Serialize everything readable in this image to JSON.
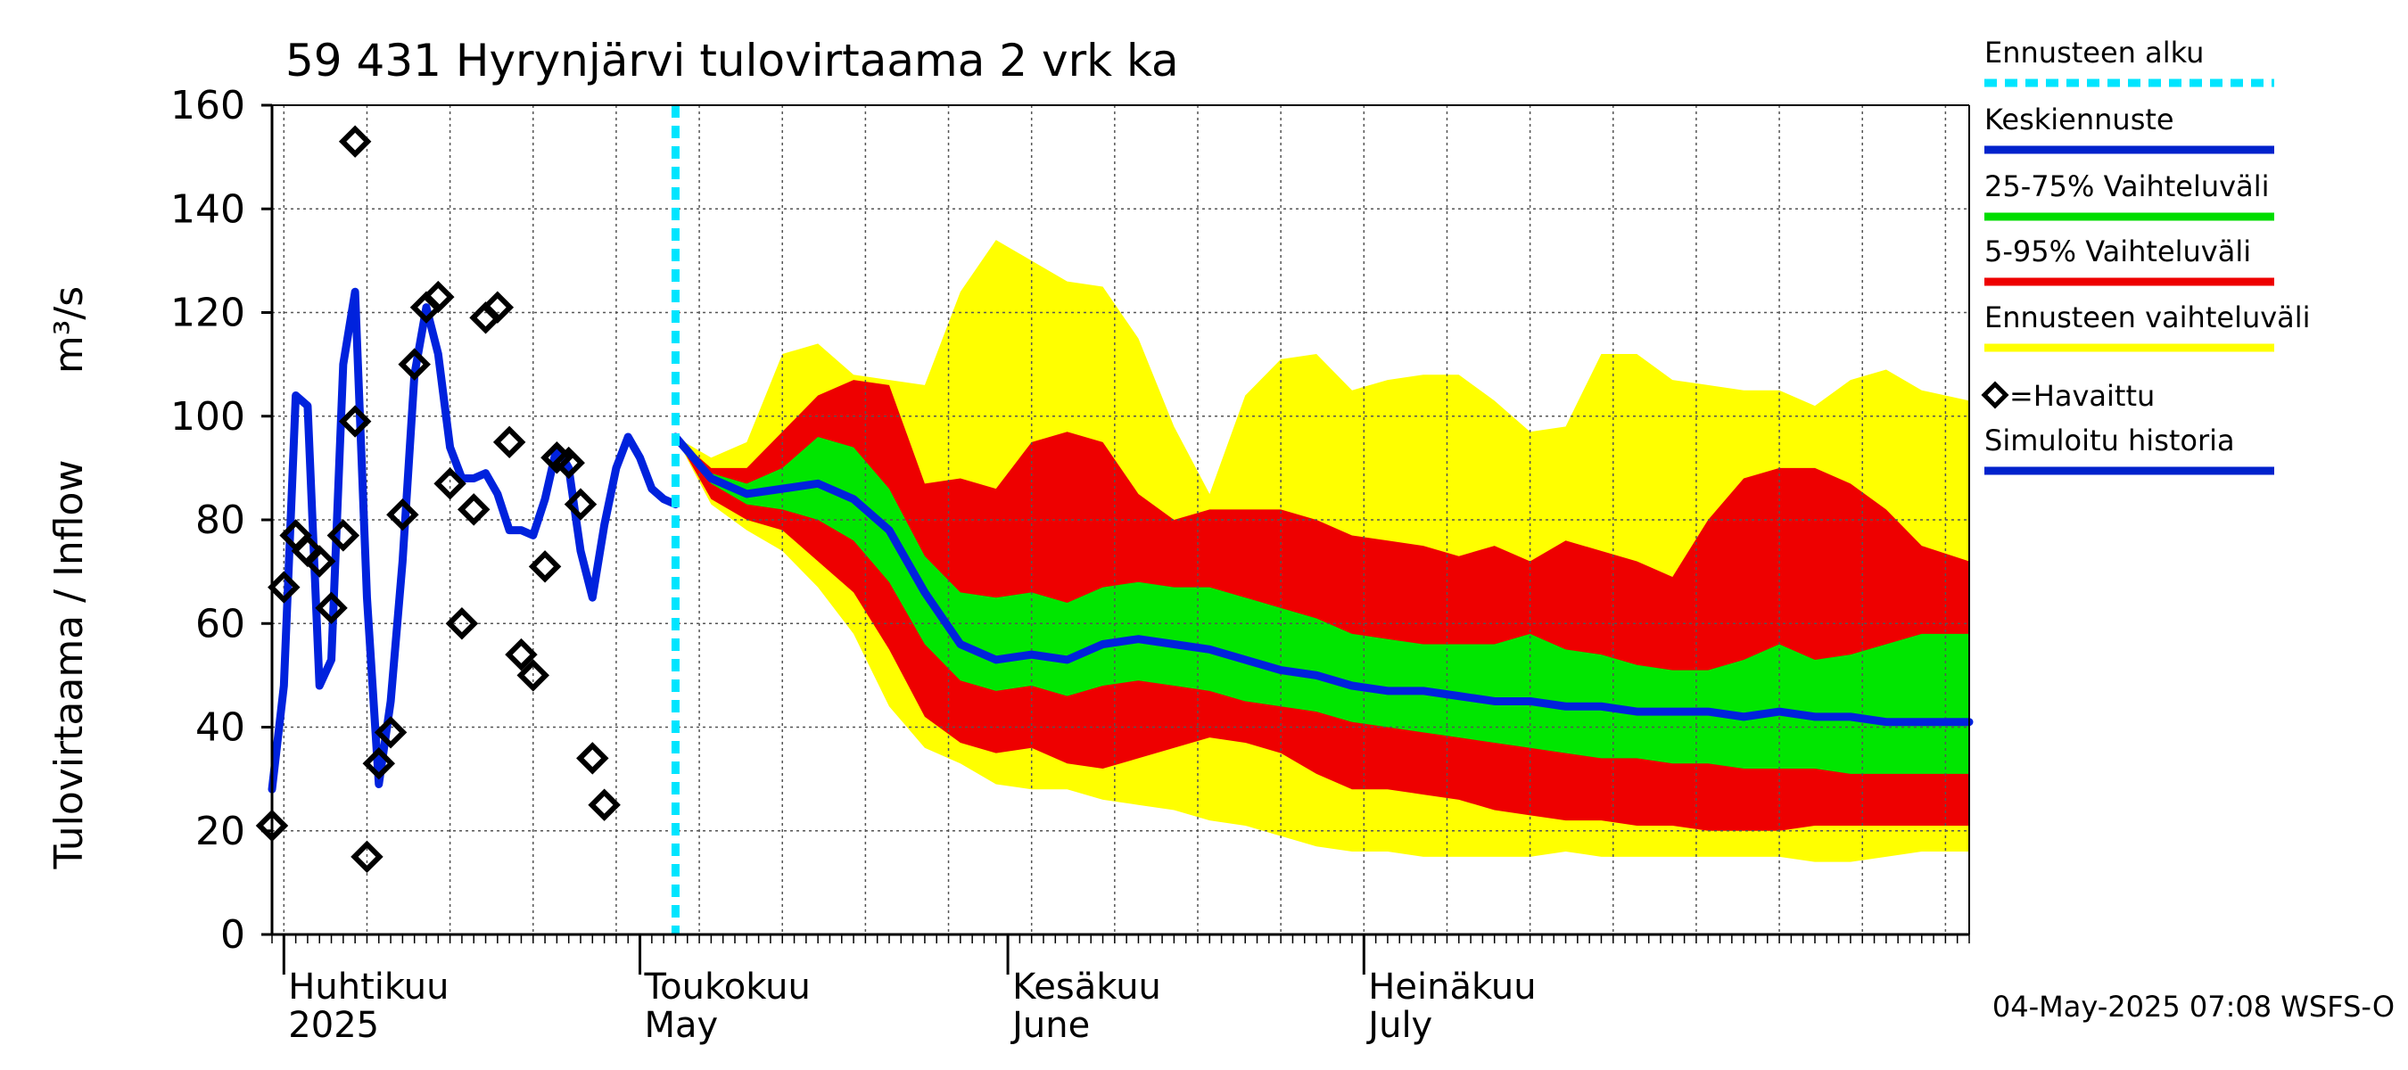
{
  "chart_data": {
    "type": "line",
    "title": "59 431 Hyrynjärvi tulovirtaama 2 vrk ka",
    "ylabel_left": "Tulovirtaama / Inflow",
    "ylabel_unit": "m³/s",
    "ylim": [
      0,
      160
    ],
    "xlim": [
      "2025-03-31",
      "2025-08-21"
    ],
    "y_ticks": [
      0,
      20,
      40,
      60,
      80,
      100,
      120,
      140,
      160
    ],
    "grid": true,
    "legend_position": "right",
    "x_tick_labels": [
      {
        "line1": "Huhtikuu",
        "line2": "2025",
        "date": "2025-04-01"
      },
      {
        "line1": "Toukokuu",
        "line2": "May",
        "date": "2025-05-01"
      },
      {
        "line1": "Kesäkuu",
        "line2": "June",
        "date": "2025-06-01"
      },
      {
        "line1": "Heinäkuu",
        "line2": "July",
        "date": "2025-07-01"
      }
    ],
    "forecast_start": "2025-05-04",
    "footer": "04-May-2025 07:08 WSFS-O",
    "legend": [
      {
        "label": "Ennusteen alku",
        "color": "#00e5ff",
        "style": "dotted"
      },
      {
        "label": "Keskiennuste",
        "color": "#0022cc",
        "style": "solid"
      },
      {
        "label": "25-75% Vaihteluväli",
        "color": "#00dd00",
        "style": "solid"
      },
      {
        "label": "5-95% Vaihteluväli",
        "color": "#ee0000",
        "style": "solid"
      },
      {
        "label": "Ennusteen vaihteluväli",
        "color": "#ffff00",
        "style": "solid"
      },
      {
        "label": "=Havaittu",
        "color": "#000000",
        "style": "marker"
      },
      {
        "label": "Simuloitu historia",
        "color": "#0022cc",
        "style": "solid"
      }
    ],
    "colors": {
      "yellow": "#ffff00",
      "red": "#ee0000",
      "green": "#00e600",
      "blue": "#0022dd",
      "forecast_start": "#00e5ff",
      "observed": "#000000"
    },
    "simulated_history": {
      "x": [
        "2025-03-31",
        "2025-04-01",
        "2025-04-02",
        "2025-04-03",
        "2025-04-04",
        "2025-04-05",
        "2025-04-06",
        "2025-04-07",
        "2025-04-08",
        "2025-04-09",
        "2025-04-10",
        "2025-04-11",
        "2025-04-12",
        "2025-04-13",
        "2025-04-14",
        "2025-04-15",
        "2025-04-16",
        "2025-04-17",
        "2025-04-18",
        "2025-04-19",
        "2025-04-20",
        "2025-04-21",
        "2025-04-22",
        "2025-04-23",
        "2025-04-24",
        "2025-04-25",
        "2025-04-26",
        "2025-04-27",
        "2025-04-28",
        "2025-04-29",
        "2025-04-30",
        "2025-05-01",
        "2025-05-02",
        "2025-05-03",
        "2025-05-04"
      ],
      "values": [
        28,
        48,
        104,
        102,
        48,
        53,
        110,
        124,
        65,
        29,
        45,
        72,
        108,
        121,
        112,
        94,
        88,
        88,
        89,
        85,
        78,
        78,
        77,
        84,
        94,
        90,
        74,
        65,
        79,
        90,
        96,
        92,
        86,
        84,
        83
      ]
    },
    "forecast_median": {
      "x": [
        "2025-05-04",
        "2025-05-07",
        "2025-05-10",
        "2025-05-13",
        "2025-05-16",
        "2025-05-19",
        "2025-05-22",
        "2025-05-25",
        "2025-05-28",
        "2025-05-31",
        "2025-06-03",
        "2025-06-06",
        "2025-06-09",
        "2025-06-12",
        "2025-06-15",
        "2025-06-18",
        "2025-06-21",
        "2025-06-24",
        "2025-06-27",
        "2025-06-30",
        "2025-07-03",
        "2025-07-06",
        "2025-07-09",
        "2025-07-12",
        "2025-07-15",
        "2025-07-18",
        "2025-07-21",
        "2025-07-24",
        "2025-07-27",
        "2025-07-30",
        "2025-08-02",
        "2025-08-05",
        "2025-08-08",
        "2025-08-11",
        "2025-08-14",
        "2025-08-17",
        "2025-08-21"
      ],
      "values": [
        96,
        88,
        85,
        86,
        87,
        84,
        78,
        66,
        56,
        53,
        54,
        53,
        56,
        57,
        56,
        55,
        53,
        51,
        50,
        48,
        47,
        47,
        46,
        45,
        45,
        44,
        44,
        43,
        43,
        43,
        42,
        43,
        42,
        42,
        41,
        41,
        41
      ]
    },
    "band_25_75": {
      "x": [
        "2025-05-04",
        "2025-05-07",
        "2025-05-10",
        "2025-05-13",
        "2025-05-16",
        "2025-05-19",
        "2025-05-22",
        "2025-05-25",
        "2025-05-28",
        "2025-05-31",
        "2025-06-03",
        "2025-06-06",
        "2025-06-09",
        "2025-06-12",
        "2025-06-15",
        "2025-06-18",
        "2025-06-21",
        "2025-06-24",
        "2025-06-27",
        "2025-06-30",
        "2025-07-03",
        "2025-07-06",
        "2025-07-09",
        "2025-07-12",
        "2025-07-15",
        "2025-07-18",
        "2025-07-21",
        "2025-07-24",
        "2025-07-27",
        "2025-07-30",
        "2025-08-02",
        "2025-08-05",
        "2025-08-08",
        "2025-08-11",
        "2025-08-14",
        "2025-08-17",
        "2025-08-21"
      ],
      "lower": [
        96,
        87,
        83,
        82,
        80,
        76,
        68,
        56,
        49,
        47,
        48,
        46,
        48,
        49,
        48,
        47,
        45,
        44,
        43,
        41,
        40,
        39,
        38,
        37,
        36,
        35,
        34,
        34,
        33,
        33,
        32,
        32,
        32,
        31,
        31,
        31,
        31
      ],
      "upper": [
        96,
        89,
        87,
        90,
        96,
        94,
        86,
        73,
        66,
        65,
        66,
        64,
        67,
        68,
        67,
        67,
        65,
        63,
        61,
        58,
        57,
        56,
        56,
        56,
        58,
        55,
        54,
        52,
        51,
        51,
        53,
        56,
        53,
        54,
        56,
        58,
        58
      ]
    },
    "band_5_95": {
      "x": [
        "2025-05-04",
        "2025-05-07",
        "2025-05-10",
        "2025-05-13",
        "2025-05-16",
        "2025-05-19",
        "2025-05-22",
        "2025-05-25",
        "2025-05-28",
        "2025-05-31",
        "2025-06-03",
        "2025-06-06",
        "2025-06-09",
        "2025-06-12",
        "2025-06-15",
        "2025-06-18",
        "2025-06-21",
        "2025-06-24",
        "2025-06-27",
        "2025-06-30",
        "2025-07-03",
        "2025-07-06",
        "2025-07-09",
        "2025-07-12",
        "2025-07-15",
        "2025-07-18",
        "2025-07-21",
        "2025-07-24",
        "2025-07-27",
        "2025-07-30",
        "2025-08-02",
        "2025-08-05",
        "2025-08-08",
        "2025-08-11",
        "2025-08-14",
        "2025-08-17",
        "2025-08-21"
      ],
      "lower": [
        96,
        84,
        80,
        78,
        72,
        66,
        55,
        42,
        37,
        35,
        36,
        33,
        32,
        34,
        36,
        38,
        37,
        35,
        31,
        28,
        28,
        27,
        26,
        24,
        23,
        22,
        22,
        21,
        21,
        20,
        20,
        20,
        21,
        21,
        21,
        21,
        21
      ],
      "upper": [
        96,
        90,
        90,
        97,
        104,
        107,
        106,
        87,
        88,
        86,
        95,
        97,
        95,
        85,
        80,
        82,
        82,
        82,
        80,
        77,
        76,
        75,
        73,
        75,
        72,
        76,
        74,
        72,
        69,
        80,
        88,
        90,
        90,
        87,
        82,
        75,
        72
      ]
    },
    "band_full": {
      "x": [
        "2025-05-04",
        "2025-05-07",
        "2025-05-10",
        "2025-05-13",
        "2025-05-16",
        "2025-05-19",
        "2025-05-22",
        "2025-05-25",
        "2025-05-28",
        "2025-05-31",
        "2025-06-03",
        "2025-06-06",
        "2025-06-09",
        "2025-06-12",
        "2025-06-15",
        "2025-06-18",
        "2025-06-21",
        "2025-06-24",
        "2025-06-27",
        "2025-06-30",
        "2025-07-03",
        "2025-07-06",
        "2025-07-09",
        "2025-07-12",
        "2025-07-15",
        "2025-07-18",
        "2025-07-21",
        "2025-07-24",
        "2025-07-27",
        "2025-07-30",
        "2025-08-02",
        "2025-08-05",
        "2025-08-08",
        "2025-08-11",
        "2025-08-14",
        "2025-08-17",
        "2025-08-21"
      ],
      "lower": [
        96,
        83,
        78,
        74,
        67,
        58,
        44,
        36,
        33,
        29,
        28,
        28,
        26,
        25,
        24,
        22,
        21,
        19,
        17,
        16,
        16,
        15,
        15,
        15,
        15,
        16,
        15,
        15,
        15,
        15,
        15,
        15,
        14,
        14,
        15,
        16,
        16
      ],
      "upper": [
        96,
        92,
        95,
        112,
        114,
        108,
        107,
        106,
        124,
        134,
        130,
        126,
        125,
        115,
        98,
        85,
        104,
        111,
        112,
        105,
        107,
        108,
        108,
        103,
        97,
        98,
        112,
        112,
        107,
        106,
        105,
        105,
        102,
        107,
        109,
        105,
        103
      ]
    },
    "observed": {
      "x": [
        "2025-03-31",
        "2025-04-01",
        "2025-04-02",
        "2025-04-03",
        "2025-04-04",
        "2025-04-05",
        "2025-04-06",
        "2025-04-07",
        "2025-04-07",
        "2025-04-08",
        "2025-04-09",
        "2025-04-10",
        "2025-04-11",
        "2025-04-12",
        "2025-04-13",
        "2025-04-14",
        "2025-04-15",
        "2025-04-16",
        "2025-04-17",
        "2025-04-18",
        "2025-04-19",
        "2025-04-20",
        "2025-04-21",
        "2025-04-22",
        "2025-04-23",
        "2025-04-24",
        "2025-04-25",
        "2025-04-26",
        "2025-04-27",
        "2025-04-28",
        "2025-04-29"
      ],
      "values": [
        21,
        67,
        77,
        74,
        72,
        63,
        77,
        153,
        99,
        15,
        33,
        39,
        81,
        110,
        121,
        123,
        87,
        60,
        82,
        119,
        121,
        95,
        54,
        50,
        71,
        92,
        91,
        83,
        34,
        25,
        null
      ]
    }
  }
}
